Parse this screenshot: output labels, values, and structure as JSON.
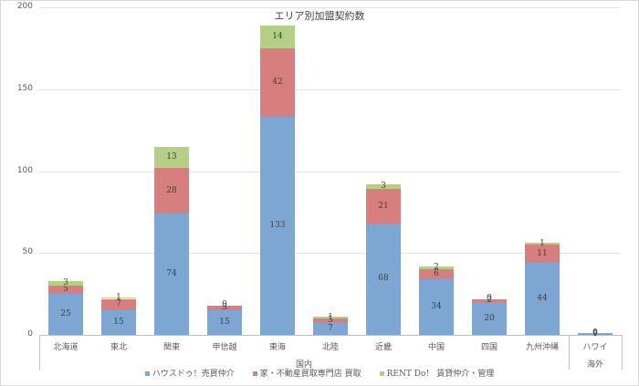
{
  "chart_data": {
    "type": "bar",
    "stacked": true,
    "title": "エリア別加盟契約数",
    "xlabel": "",
    "ylabel": "",
    "ylim": [
      0,
      200
    ],
    "yticks": [
      0,
      50,
      100,
      150,
      200
    ],
    "grid": true,
    "legend_position": "bottom",
    "categories": [
      "北海道",
      "東北",
      "関東",
      "甲信越",
      "東海",
      "北陸",
      "近畿",
      "中国",
      "四国",
      "九州沖縄",
      "ハワイ"
    ],
    "groups": [
      {
        "label": "国内",
        "categories": [
          "北海道",
          "東北",
          "関東",
          "甲信越",
          "東海",
          "北陸",
          "近畿",
          "中国",
          "四国",
          "九州沖縄"
        ]
      },
      {
        "label": "海外",
        "categories": [
          "ハワイ"
        ]
      }
    ],
    "series": [
      {
        "name": "ハウスドゥ！売買仲介",
        "color": "#7ea6d3",
        "values": [
          25,
          15,
          74,
          15,
          133,
          7,
          68,
          34,
          20,
          44,
          1
        ]
      },
      {
        "name": "家・不動産買取専門店 買取",
        "color": "#d77f7e",
        "values": [
          5,
          7,
          28,
          3,
          42,
          3,
          21,
          6,
          2,
          11,
          0
        ]
      },
      {
        "name": "RENT Do！ 賃貸仲介・管理",
        "color": "#b5cf87",
        "values": [
          3,
          1,
          13,
          0,
          14,
          1,
          3,
          2,
          0,
          1,
          0
        ]
      }
    ]
  }
}
